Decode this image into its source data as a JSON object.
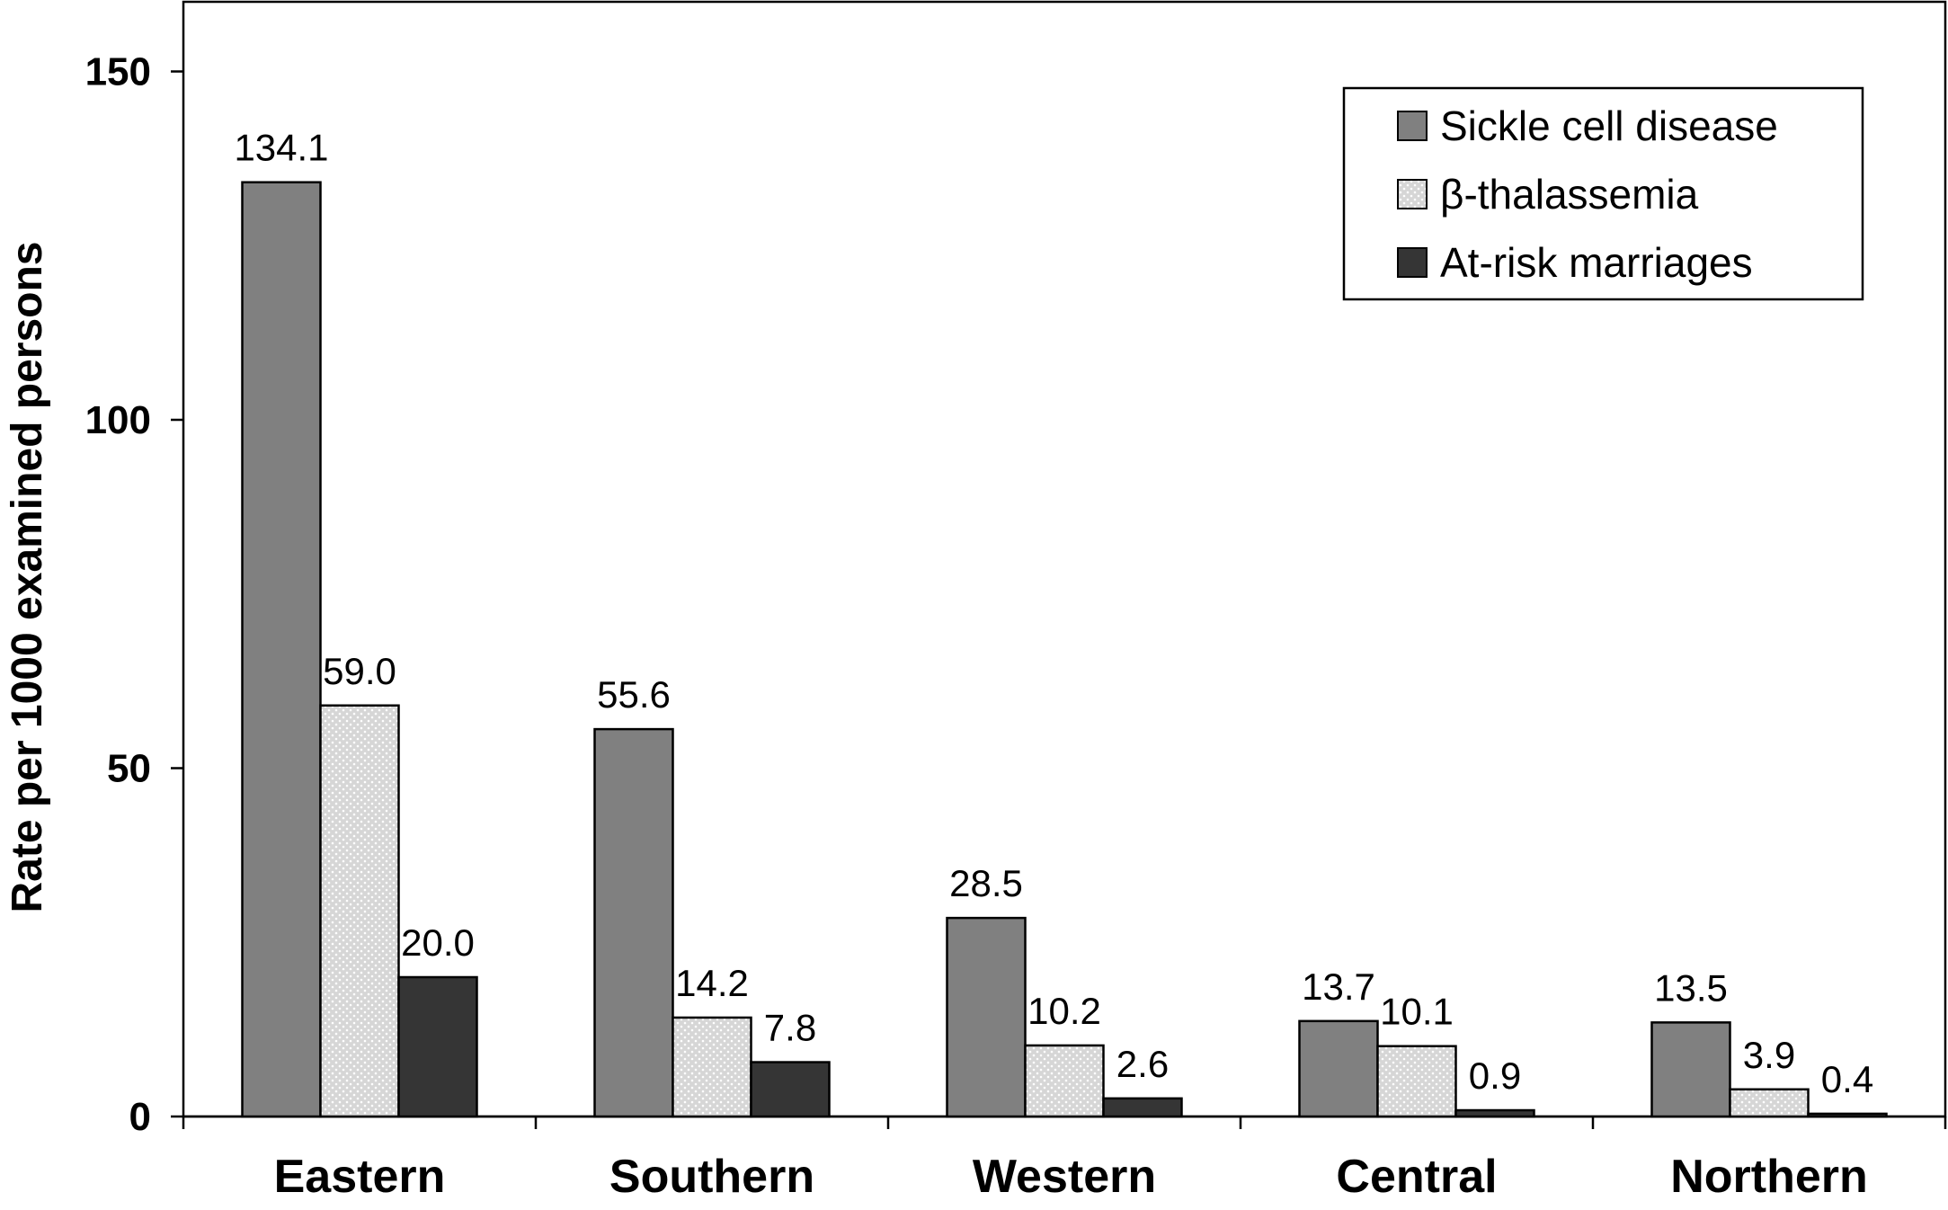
{
  "chart_data": {
    "type": "bar",
    "title": "",
    "xlabel": "",
    "ylabel": "Rate per 1000 examined persons",
    "ylim": [
      0,
      160
    ],
    "yticks": [
      0,
      50,
      100,
      150
    ],
    "grid": false,
    "legend_position": "top-right",
    "categories": [
      "Eastern",
      "Southern",
      "Western",
      "Central",
      "Northern"
    ],
    "series": [
      {
        "name": "Sickle cell disease",
        "values": [
          134.1,
          55.6,
          28.5,
          13.7,
          13.5
        ],
        "labels": [
          "134.1",
          "55.6",
          "28.5",
          "13.7",
          "13.5"
        ],
        "color": "#808080",
        "pattern": "solid"
      },
      {
        "name": "β-thalassemia",
        "values": [
          59.0,
          14.2,
          10.2,
          10.1,
          3.9
        ],
        "labels": [
          "59.0",
          "14.2",
          "10.2",
          "10.1",
          "3.9"
        ],
        "color": "#d3d3d3",
        "pattern": "dotted"
      },
      {
        "name": "At-risk marriages",
        "values": [
          20.0,
          7.8,
          2.6,
          0.9,
          0.4
        ],
        "labels": [
          "20.0",
          "7.8",
          "2.6",
          "0.9",
          "0.4"
        ],
        "color": "#353535",
        "pattern": "solid"
      }
    ]
  }
}
